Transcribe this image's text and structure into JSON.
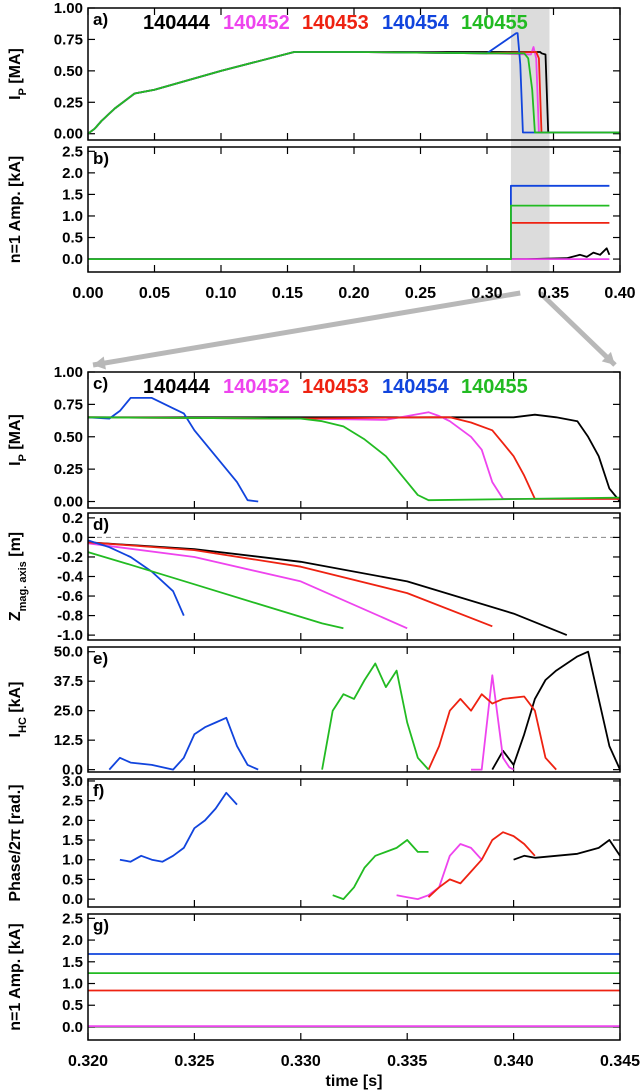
{
  "colors": {
    "140444": "#000000",
    "140452": "#ee44ee",
    "140453": "#ee2211",
    "140454": "#1144dd",
    "140455": "#22bb22",
    "highlight": "#dcdcdc",
    "arrow": "#b8b8b8"
  },
  "legend": [
    "140444",
    "140452",
    "140453",
    "140454",
    "140455"
  ],
  "top_xaxis": {
    "ticks": [
      "0.00",
      "0.05",
      "0.10",
      "0.15",
      "0.20",
      "0.25",
      "0.30",
      "0.35",
      "0.40"
    ],
    "range": [
      0.0,
      0.4
    ],
    "highlight": [
      0.318,
      0.347
    ]
  },
  "bottom_xaxis": {
    "ticks": [
      "0.320",
      "0.325",
      "0.330",
      "0.335",
      "0.340",
      "0.345"
    ],
    "range": [
      0.32,
      0.345
    ],
    "label": "time [s]"
  },
  "panels": {
    "a": {
      "tag": "a)",
      "ylabel": "I",
      "ysub": "P",
      "yunit": " [MA]",
      "yticks": [
        "1.00",
        "0.75",
        "0.50",
        "0.25",
        "0.00"
      ]
    },
    "b": {
      "tag": "b)",
      "ylabel": "n=1 Amp. [kA]",
      "yticks": [
        "2.5",
        "2.0",
        "1.5",
        "1.0",
        "0.5",
        "0.0"
      ]
    },
    "c": {
      "tag": "c)",
      "ylabel": "I",
      "ysub": "P",
      "yunit": " [MA]",
      "yticks": [
        "1.00",
        "0.75",
        "0.50",
        "0.25",
        "0.00"
      ]
    },
    "d": {
      "tag": "d)",
      "ylabel": "Z",
      "ysub": "mag. axis",
      "yunit": " [m]",
      "yticks": [
        "0.2",
        "0.0",
        "-0.2",
        "-0.4",
        "-0.6",
        "-0.8",
        "-1.0"
      ]
    },
    "e": {
      "tag": "e)",
      "ylabel": "I",
      "ysub": "HC",
      "yunit": " [kA]",
      "yticks": [
        "50.0",
        "37.5",
        "25.0",
        "12.5",
        "0.0"
      ]
    },
    "f": {
      "tag": "f)",
      "ylabel": "Phase/2π [rad.]",
      "yticks": [
        "3.0",
        "2.5",
        "2.0",
        "1.5",
        "1.0",
        "0.5",
        "0.0"
      ]
    },
    "g": {
      "tag": "g)",
      "ylabel": "n=1 Amp. [kA]",
      "yticks": [
        "2.5",
        "2.0",
        "1.5",
        "1.0",
        "0.5",
        "0.0"
      ]
    }
  },
  "chart_data": [
    {
      "panel": "a",
      "type": "line",
      "xlim": [
        0,
        0.4
      ],
      "ylim": [
        -0.05,
        1.0
      ],
      "series": [
        {
          "name": "140444",
          "x": [
            0,
            0.005,
            0.01,
            0.02,
            0.035,
            0.05,
            0.1,
            0.155,
            0.2,
            0.3,
            0.34,
            0.341,
            0.344,
            0.346,
            0.4
          ],
          "y": [
            0,
            0.04,
            0.1,
            0.2,
            0.32,
            0.35,
            0.5,
            0.65,
            0.65,
            0.65,
            0.65,
            0.64,
            0.63,
            0.01,
            0.01
          ]
        },
        {
          "name": "140452",
          "x": [
            0,
            0.005,
            0.01,
            0.02,
            0.035,
            0.05,
            0.1,
            0.155,
            0.2,
            0.3,
            0.333,
            0.335,
            0.337,
            0.339,
            0.4
          ],
          "y": [
            0,
            0.04,
            0.1,
            0.2,
            0.32,
            0.35,
            0.5,
            0.65,
            0.65,
            0.64,
            0.63,
            0.69,
            0.6,
            0.01,
            0.01
          ]
        },
        {
          "name": "140453",
          "x": [
            0,
            0.005,
            0.01,
            0.02,
            0.035,
            0.05,
            0.1,
            0.155,
            0.2,
            0.3,
            0.336,
            0.337,
            0.339,
            0.341,
            0.4
          ],
          "y": [
            0,
            0.04,
            0.1,
            0.2,
            0.32,
            0.35,
            0.5,
            0.65,
            0.65,
            0.64,
            0.65,
            0.65,
            0.6,
            0.01,
            0.01
          ]
        },
        {
          "name": "140454",
          "x": [
            0,
            0.005,
            0.01,
            0.02,
            0.035,
            0.05,
            0.1,
            0.155,
            0.2,
            0.3,
            0.322,
            0.323,
            0.325,
            0.327,
            0.4
          ],
          "y": [
            0,
            0.04,
            0.1,
            0.2,
            0.32,
            0.35,
            0.5,
            0.65,
            0.65,
            0.64,
            0.8,
            0.8,
            0.55,
            0.01,
            0.01
          ]
        },
        {
          "name": "140455",
          "x": [
            0,
            0.005,
            0.01,
            0.02,
            0.035,
            0.05,
            0.1,
            0.155,
            0.2,
            0.3,
            0.328,
            0.331,
            0.334,
            0.336,
            0.4
          ],
          "y": [
            0,
            0.04,
            0.1,
            0.2,
            0.32,
            0.35,
            0.5,
            0.65,
            0.65,
            0.64,
            0.64,
            0.6,
            0.35,
            0.01,
            0.01
          ]
        }
      ]
    },
    {
      "panel": "b",
      "type": "line",
      "xlim": [
        0,
        0.4
      ],
      "ylim": [
        -0.3,
        2.6
      ],
      "series": [
        {
          "name": "140444",
          "x": [
            0,
            0.33,
            0.36,
            0.37,
            0.375,
            0.38,
            0.385,
            0.39,
            0.392
          ],
          "y": [
            0,
            0,
            0.02,
            0.1,
            0.05,
            0.15,
            0.1,
            0.25,
            0.1
          ]
        },
        {
          "name": "140452",
          "x": [
            0,
            0.392
          ],
          "y": [
            0,
            0
          ]
        },
        {
          "name": "140453",
          "x": [
            0,
            0.318,
            0.318,
            0.392
          ],
          "y": [
            0,
            0,
            0.84,
            0.84
          ]
        },
        {
          "name": "140454",
          "x": [
            0,
            0.318,
            0.318,
            0.392
          ],
          "y": [
            0,
            0,
            1.7,
            1.7
          ]
        },
        {
          "name": "140455",
          "x": [
            0,
            0.318,
            0.318,
            0.392
          ],
          "y": [
            0,
            0,
            1.24,
            1.24
          ]
        }
      ]
    },
    {
      "panel": "c",
      "type": "line",
      "xlim": [
        0.32,
        0.345
      ],
      "ylim": [
        -0.05,
        1.0
      ],
      "series": [
        {
          "name": "140444",
          "x": [
            0.32,
            0.33,
            0.338,
            0.34,
            0.341,
            0.342,
            0.343,
            0.3435,
            0.344,
            0.3445,
            0.345
          ],
          "y": [
            0.65,
            0.65,
            0.65,
            0.65,
            0.67,
            0.65,
            0.62,
            0.5,
            0.35,
            0.1,
            0.0
          ]
        },
        {
          "name": "140452",
          "x": [
            0.32,
            0.33,
            0.334,
            0.336,
            0.3365,
            0.337,
            0.338,
            0.3385,
            0.339,
            0.3395,
            0.345
          ],
          "y": [
            0.65,
            0.64,
            0.63,
            0.69,
            0.66,
            0.62,
            0.5,
            0.4,
            0.15,
            0.02,
            0.02
          ]
        },
        {
          "name": "140453",
          "x": [
            0.32,
            0.33,
            0.336,
            0.337,
            0.338,
            0.339,
            0.3395,
            0.34,
            0.3405,
            0.341,
            0.345
          ],
          "y": [
            0.65,
            0.64,
            0.65,
            0.65,
            0.61,
            0.55,
            0.45,
            0.35,
            0.2,
            0.02,
            0.02
          ]
        },
        {
          "name": "140454",
          "x": [
            0.32,
            0.321,
            0.3215,
            0.322,
            0.323,
            0.324,
            0.3245,
            0.325,
            0.326,
            0.327,
            0.3275,
            0.328
          ],
          "y": [
            0.65,
            0.64,
            0.7,
            0.8,
            0.8,
            0.72,
            0.68,
            0.55,
            0.35,
            0.15,
            0.01,
            0.0
          ]
        },
        {
          "name": "140455",
          "x": [
            0.32,
            0.33,
            0.331,
            0.332,
            0.333,
            0.334,
            0.335,
            0.3355,
            0.336,
            0.345
          ],
          "y": [
            0.65,
            0.64,
            0.62,
            0.58,
            0.48,
            0.35,
            0.15,
            0.05,
            0.01,
            0.03
          ]
        }
      ]
    },
    {
      "panel": "d",
      "type": "line",
      "xlim": [
        0.32,
        0.345
      ],
      "ylim": [
        -1.05,
        0.25
      ],
      "series": [
        {
          "name": "140444",
          "x": [
            0.32,
            0.325,
            0.33,
            0.335,
            0.34,
            0.3425
          ],
          "y": [
            -0.05,
            -0.12,
            -0.25,
            -0.45,
            -0.78,
            -1.0
          ]
        },
        {
          "name": "140452",
          "x": [
            0.32,
            0.325,
            0.33,
            0.335
          ],
          "y": [
            -0.06,
            -0.2,
            -0.45,
            -0.93
          ]
        },
        {
          "name": "140453",
          "x": [
            0.32,
            0.325,
            0.33,
            0.335,
            0.339
          ],
          "y": [
            -0.05,
            -0.13,
            -0.3,
            -0.57,
            -0.91
          ]
        },
        {
          "name": "140454",
          "x": [
            0.32,
            0.321,
            0.322,
            0.323,
            0.324,
            0.3245
          ],
          "y": [
            -0.03,
            -0.1,
            -0.2,
            -0.35,
            -0.55,
            -0.8
          ]
        },
        {
          "name": "140455",
          "x": [
            0.32,
            0.322,
            0.325,
            0.328,
            0.331,
            0.332
          ],
          "y": [
            -0.15,
            -0.28,
            -0.48,
            -0.68,
            -0.88,
            -0.93
          ]
        }
      ]
    },
    {
      "panel": "e",
      "type": "line",
      "xlim": [
        0.32,
        0.345
      ],
      "ylim": [
        -1,
        52
      ],
      "series": [
        {
          "name": "140444",
          "x": [
            0.339,
            0.3395,
            0.34,
            0.3405,
            0.341,
            0.3415,
            0.342,
            0.3425,
            0.343,
            0.3435,
            0.344,
            0.3445,
            0.345
          ],
          "y": [
            0,
            8,
            2,
            15,
            30,
            38,
            42,
            45,
            48,
            50,
            30,
            10,
            0
          ]
        },
        {
          "name": "140452",
          "x": [
            0.338,
            0.3385,
            0.339,
            0.3395,
            0.3398,
            0.34
          ],
          "y": [
            0,
            0,
            40,
            5,
            1,
            0
          ]
        },
        {
          "name": "140453",
          "x": [
            0.336,
            0.3365,
            0.337,
            0.3375,
            0.338,
            0.3385,
            0.339,
            0.3395,
            0.3405,
            0.341,
            0.3415,
            0.342
          ],
          "y": [
            0,
            10,
            25,
            30,
            25,
            32,
            28,
            30,
            31,
            25,
            5,
            0
          ]
        },
        {
          "name": "140454",
          "x": [
            0.321,
            0.3215,
            0.322,
            0.323,
            0.324,
            0.3245,
            0.325,
            0.3255,
            0.326,
            0.3265,
            0.327,
            0.3275,
            0.328
          ],
          "y": [
            0,
            5,
            3,
            2,
            0,
            5,
            15,
            18,
            20,
            22,
            10,
            2,
            0
          ]
        },
        {
          "name": "140455",
          "x": [
            0.331,
            0.3315,
            0.332,
            0.3325,
            0.333,
            0.3335,
            0.334,
            0.3345,
            0.335,
            0.3355,
            0.336
          ],
          "y": [
            0,
            25,
            32,
            30,
            38,
            45,
            35,
            42,
            20,
            5,
            0
          ]
        }
      ]
    },
    {
      "panel": "f",
      "type": "line",
      "xlim": [
        0.32,
        0.345
      ],
      "ylim": [
        -0.2,
        3.05
      ],
      "series": [
        {
          "name": "140444",
          "x": [
            0.34,
            0.3405,
            0.341,
            0.342,
            0.343,
            0.344,
            0.3445,
            0.345
          ],
          "y": [
            1.0,
            1.1,
            1.05,
            1.1,
            1.15,
            1.3,
            1.5,
            1.1
          ]
        },
        {
          "name": "140452",
          "x": [
            0.3345,
            0.335,
            0.3355,
            0.336,
            0.3365,
            0.337,
            0.3375,
            0.338,
            0.3385
          ],
          "y": [
            0.1,
            0.05,
            0.0,
            0.1,
            0.3,
            1.1,
            1.4,
            1.3,
            1.0
          ]
        },
        {
          "name": "140453",
          "x": [
            0.336,
            0.3365,
            0.337,
            0.3375,
            0.338,
            0.3385,
            0.339,
            0.3395,
            0.34,
            0.3405,
            0.341
          ],
          "y": [
            0.05,
            0.3,
            0.5,
            0.4,
            0.7,
            1.0,
            1.5,
            1.7,
            1.6,
            1.4,
            1.1
          ]
        },
        {
          "name": "140454",
          "x": [
            0.3215,
            0.322,
            0.3225,
            0.323,
            0.3235,
            0.324,
            0.3245,
            0.325,
            0.3255,
            0.326,
            0.3265,
            0.327
          ],
          "y": [
            1.0,
            0.95,
            1.1,
            1.0,
            0.95,
            1.1,
            1.3,
            1.8,
            2.0,
            2.3,
            2.7,
            2.4
          ]
        },
        {
          "name": "140455",
          "x": [
            0.3315,
            0.332,
            0.3325,
            0.333,
            0.3335,
            0.334,
            0.3345,
            0.335,
            0.3355,
            0.336
          ],
          "y": [
            0.1,
            0.0,
            0.3,
            0.8,
            1.1,
            1.2,
            1.3,
            1.5,
            1.2,
            1.2
          ]
        }
      ]
    },
    {
      "panel": "g",
      "type": "line",
      "xlim": [
        0.32,
        0.345
      ],
      "ylim": [
        -0.3,
        2.6
      ],
      "series": [
        {
          "name": "140444",
          "x": [
            0.32,
            0.345
          ],
          "y": [
            0.01,
            0.01
          ]
        },
        {
          "name": "140452",
          "x": [
            0.32,
            0.345
          ],
          "y": [
            0.02,
            0.02
          ]
        },
        {
          "name": "140453",
          "x": [
            0.32,
            0.345
          ],
          "y": [
            0.84,
            0.84
          ]
        },
        {
          "name": "140454",
          "x": [
            0.32,
            0.345
          ],
          "y": [
            1.68,
            1.68
          ]
        },
        {
          "name": "140455",
          "x": [
            0.32,
            0.345
          ],
          "y": [
            1.24,
            1.24
          ]
        }
      ]
    }
  ]
}
